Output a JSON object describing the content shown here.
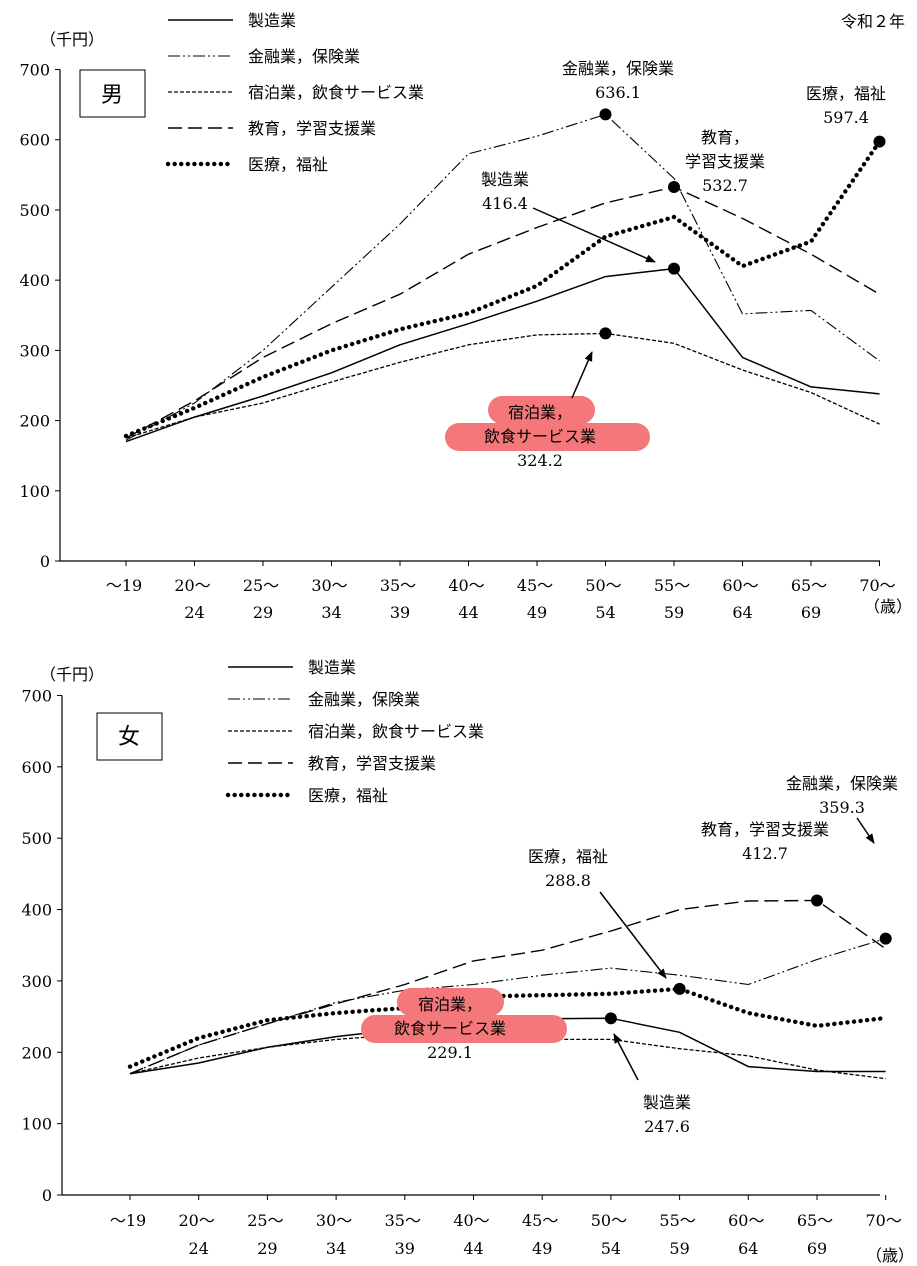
{
  "top_note": "令和２年",
  "chart_data": [
    {
      "type": "line",
      "panel_label": "男",
      "ylabel": "（千円）",
      "xunit": "（歳）",
      "ylim": [
        0,
        700
      ],
      "yticks": [
        0,
        100,
        200,
        300,
        400,
        500,
        600,
        700
      ],
      "categories": [
        "～19",
        "20～24",
        "25～29",
        "30～34",
        "35～39",
        "40～44",
        "45～49",
        "50～54",
        "55～59",
        "60～64",
        "65～69",
        "70～"
      ],
      "tick_labels": [
        [
          "～19",
          ""
        ],
        [
          "20～",
          "24"
        ],
        [
          "25～",
          "29"
        ],
        [
          "30～",
          "34"
        ],
        [
          "35～",
          "39"
        ],
        [
          "40～",
          "44"
        ],
        [
          "45～",
          "49"
        ],
        [
          "50～",
          "54"
        ],
        [
          "55～",
          "59"
        ],
        [
          "60～",
          "64"
        ],
        [
          "65～",
          "69"
        ],
        [
          "70～",
          ""
        ]
      ],
      "series": [
        {
          "name": "製造業",
          "style": "solid",
          "values": [
            170,
            205,
            235,
            268,
            308,
            338,
            370,
            405,
            416.4,
            290,
            248,
            238
          ]
        },
        {
          "name": "金融業，保険業",
          "style": "dashdotdot",
          "values": [
            172,
            225,
            300,
            390,
            480,
            580,
            605,
            636.1,
            545,
            352,
            357,
            285
          ]
        },
        {
          "name": "宿泊業，飲食サービス業",
          "style": "dashed-short",
          "values": [
            175,
            205,
            225,
            255,
            283,
            308,
            322,
            324.2,
            310,
            272,
            240,
            195
          ]
        },
        {
          "name": "教育，学習支援業",
          "style": "dashed-long",
          "values": [
            175,
            228,
            290,
            338,
            380,
            437,
            475,
            510,
            532.7,
            488,
            437,
            380
          ]
        },
        {
          "name": "医療，福祉",
          "style": "dotted",
          "values": [
            178,
            218,
            262,
            300,
            330,
            353,
            392,
            462,
            490,
            420,
            455,
            597.4
          ]
        }
      ],
      "annotations": [
        {
          "lines": [
            "金融業，保険業",
            "636.1"
          ]
        },
        {
          "lines": [
            "医療，福祉",
            "597.4"
          ]
        },
        {
          "lines": [
            "教育，",
            "学習支援業",
            "532.7"
          ]
        },
        {
          "lines": [
            "製造業",
            "416.4"
          ]
        },
        {
          "lines": [
            "宿泊業，",
            "飲食サービス業",
            "324.2"
          ]
        }
      ]
    },
    {
      "type": "line",
      "panel_label": "女",
      "ylabel": "（千円）",
      "xunit": "（歳）",
      "ylim": [
        0,
        700
      ],
      "yticks": [
        0,
        100,
        200,
        300,
        400,
        500,
        600,
        700
      ],
      "categories": [
        "～19",
        "20～24",
        "25～29",
        "30～34",
        "35～39",
        "40～44",
        "45～49",
        "50～54",
        "55～59",
        "60～64",
        "65～69",
        "70～"
      ],
      "tick_labels": [
        [
          "～19",
          ""
        ],
        [
          "20～",
          "24"
        ],
        [
          "25～",
          "29"
        ],
        [
          "30～",
          "34"
        ],
        [
          "35～",
          "39"
        ],
        [
          "40～",
          "44"
        ],
        [
          "45～",
          "49"
        ],
        [
          "50～",
          "54"
        ],
        [
          "55～",
          "59"
        ],
        [
          "60～",
          "64"
        ],
        [
          "65～",
          "69"
        ],
        [
          "70～",
          ""
        ]
      ],
      "series": [
        {
          "name": "製造業",
          "style": "solid",
          "values": [
            170,
            185,
            207,
            222,
            233,
            243,
            247,
            247.6,
            228,
            180,
            173,
            173
          ]
        },
        {
          "name": "金融業，保険業",
          "style": "dashdotdot",
          "values": [
            170,
            210,
            240,
            270,
            287,
            295,
            308,
            318,
            308,
            295,
            330,
            359.3
          ]
        },
        {
          "name": "宿泊業，飲食サービス業",
          "style": "dashed-short",
          "values": [
            170,
            192,
            207,
            218,
            225,
            229.1,
            218,
            218,
            205,
            195,
            175,
            163
          ]
        },
        {
          "name": "教育，学習支援業",
          "style": "dashed-long",
          "values": [
            170,
            210,
            240,
            268,
            295,
            328,
            343,
            370,
            400,
            412,
            412.7,
            345
          ]
        },
        {
          "name": "医療，福祉",
          "style": "dotted",
          "values": [
            180,
            220,
            245,
            255,
            262,
            278,
            280,
            282,
            288.8,
            255,
            237,
            248
          ]
        }
      ],
      "annotations": [
        {
          "lines": [
            "金融業，保険業",
            "359.3"
          ]
        },
        {
          "lines": [
            "教育，学習支援業",
            "412.7"
          ]
        },
        {
          "lines": [
            "医療，福祉",
            "288.8"
          ]
        },
        {
          "lines": [
            "宿泊業，",
            "飲食サービス業",
            "229.1"
          ]
        },
        {
          "lines": [
            "製造業",
            "247.6"
          ]
        }
      ]
    }
  ],
  "colors": {
    "highlight": "#f4787a",
    "ink": "#000000"
  }
}
